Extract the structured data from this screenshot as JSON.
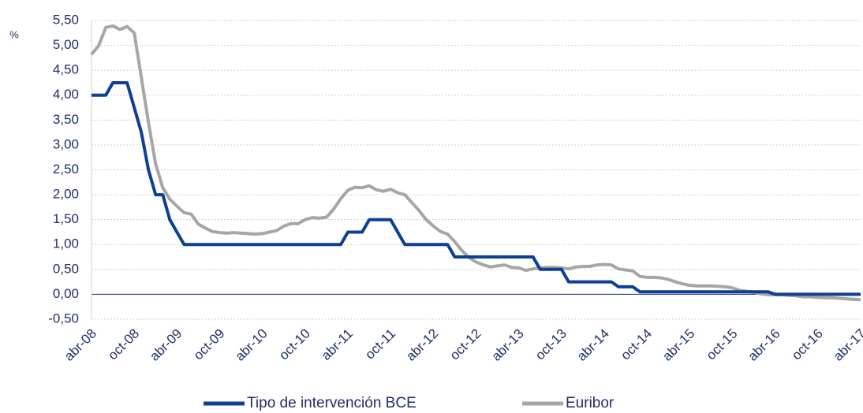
{
  "chart_data": {
    "type": "line",
    "y_label": "%",
    "categories": [
      "abr-08",
      null,
      null,
      null,
      null,
      null,
      "oct-08",
      null,
      null,
      null,
      null,
      null,
      "abr-09",
      null,
      null,
      null,
      null,
      null,
      "oct-09",
      null,
      null,
      null,
      null,
      null,
      "abr-10",
      null,
      null,
      null,
      null,
      null,
      "oct-10",
      null,
      null,
      null,
      null,
      null,
      "abr-11",
      null,
      null,
      null,
      null,
      null,
      "oct-11",
      null,
      null,
      null,
      null,
      null,
      "abr-12",
      null,
      null,
      null,
      null,
      null,
      "oct-12",
      null,
      null,
      null,
      null,
      null,
      "abr-13",
      null,
      null,
      null,
      null,
      null,
      "oct-13",
      null,
      null,
      null,
      null,
      null,
      "abr-14",
      null,
      null,
      null,
      null,
      null,
      "oct-14",
      null,
      null,
      null,
      null,
      null,
      "abr-15",
      null,
      null,
      null,
      null,
      null,
      "oct-15",
      null,
      null,
      null,
      null,
      null,
      "abr-16",
      null,
      null,
      null,
      null,
      null,
      "oct-16",
      null,
      null,
      null,
      null,
      null,
      "abr-17"
    ],
    "series": [
      {
        "name": "Tipo de intervención BCE",
        "color": "#0d3f94",
        "values": [
          4.0,
          4.0,
          4.0,
          4.25,
          4.25,
          4.25,
          3.75,
          3.25,
          2.5,
          2.0,
          2.0,
          1.5,
          1.25,
          1.0,
          1.0,
          1.0,
          1.0,
          1.0,
          1.0,
          1.0,
          1.0,
          1.0,
          1.0,
          1.0,
          1.0,
          1.0,
          1.0,
          1.0,
          1.0,
          1.0,
          1.0,
          1.0,
          1.0,
          1.0,
          1.0,
          1.0,
          1.25,
          1.25,
          1.25,
          1.5,
          1.5,
          1.5,
          1.5,
          1.25,
          1.0,
          1.0,
          1.0,
          1.0,
          1.0,
          1.0,
          1.0,
          0.75,
          0.75,
          0.75,
          0.75,
          0.75,
          0.75,
          0.75,
          0.75,
          0.75,
          0.75,
          0.75,
          0.75,
          0.5,
          0.5,
          0.5,
          0.5,
          0.25,
          0.25,
          0.25,
          0.25,
          0.25,
          0.25,
          0.25,
          0.15,
          0.15,
          0.15,
          0.05,
          0.05,
          0.05,
          0.05,
          0.05,
          0.05,
          0.05,
          0.05,
          0.05,
          0.05,
          0.05,
          0.05,
          0.05,
          0.05,
          0.05,
          0.05,
          0.05,
          0.05,
          0.05,
          0.0,
          0.0,
          0.0,
          0.0,
          0.0,
          0.0,
          0.0,
          0.0,
          0.0,
          0.0,
          0.0,
          0.0,
          0.0
        ]
      },
      {
        "name": "Euribor",
        "color": "#a6a6a6",
        "values": [
          4.82,
          4.99,
          5.36,
          5.39,
          5.32,
          5.38,
          5.25,
          4.35,
          3.45,
          2.62,
          2.14,
          1.91,
          1.77,
          1.64,
          1.61,
          1.41,
          1.33,
          1.26,
          1.24,
          1.23,
          1.24,
          1.23,
          1.22,
          1.21,
          1.22,
          1.25,
          1.28,
          1.37,
          1.42,
          1.42,
          1.5,
          1.54,
          1.53,
          1.55,
          1.71,
          1.92,
          2.09,
          2.15,
          2.14,
          2.18,
          2.1,
          2.07,
          2.11,
          2.04,
          2.0,
          1.84,
          1.68,
          1.5,
          1.37,
          1.26,
          1.21,
          1.06,
          0.88,
          0.74,
          0.65,
          0.59,
          0.55,
          0.57,
          0.59,
          0.54,
          0.53,
          0.48,
          0.51,
          0.53,
          0.54,
          0.54,
          0.53,
          0.51,
          0.55,
          0.56,
          0.56,
          0.59,
          0.6,
          0.59,
          0.51,
          0.49,
          0.47,
          0.36,
          0.34,
          0.34,
          0.33,
          0.3,
          0.25,
          0.21,
          0.18,
          0.17,
          0.17,
          0.17,
          0.16,
          0.15,
          0.13,
          0.08,
          0.06,
          0.04,
          0.01,
          -0.01,
          -0.01,
          -0.01,
          -0.02,
          -0.03,
          -0.05,
          -0.05,
          -0.06,
          -0.07,
          -0.07,
          -0.08,
          -0.09,
          -0.1,
          -0.11
        ]
      }
    ],
    "ylim": [
      -0.5,
      5.5
    ],
    "yticks": [
      {
        "value": -0.5,
        "label": "-0,50"
      },
      {
        "value": 0,
        "label": "0,00"
      },
      {
        "value": 0.5,
        "label": "0,50"
      },
      {
        "value": 1,
        "label": "1,00"
      },
      {
        "value": 1.5,
        "label": "1,50"
      },
      {
        "value": 2,
        "label": "2,00"
      },
      {
        "value": 2.5,
        "label": "2,50"
      },
      {
        "value": 3,
        "label": "3,00"
      },
      {
        "value": 3.5,
        "label": "3,50"
      },
      {
        "value": 4,
        "label": "4,00"
      },
      {
        "value": 4.5,
        "label": "4,50"
      },
      {
        "value": 5,
        "label": "5,00"
      },
      {
        "value": 5.5,
        "label": "5,50"
      }
    ],
    "grid": true,
    "legend": "bottom"
  }
}
